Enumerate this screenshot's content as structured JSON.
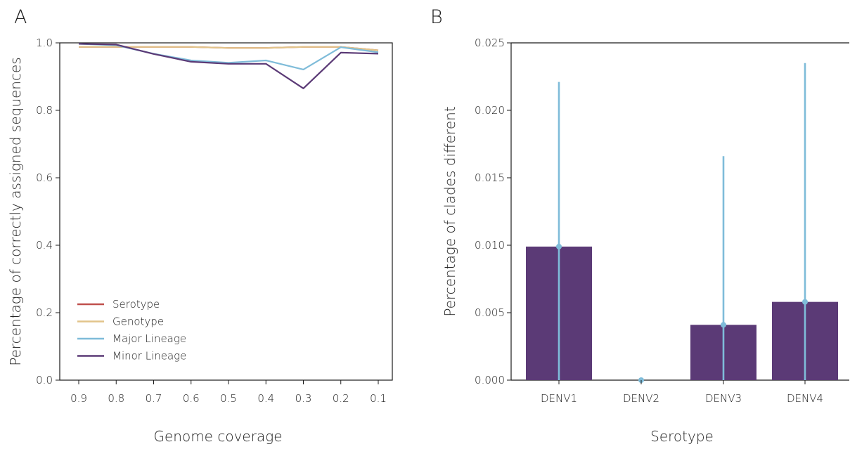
{
  "chart_data": [
    {
      "panel_label": "A",
      "type": "line",
      "xlabel": "Genome coverage",
      "ylabel": "Percentage of correctly assigned sequences",
      "x": [
        0.9,
        0.8,
        0.7,
        0.6,
        0.5,
        0.4,
        0.3,
        0.2,
        0.1
      ],
      "x_tick_labels": [
        "0.9",
        "0.8",
        "0.7",
        "0.6",
        "0.5",
        "0.4",
        "0.3",
        "0.2",
        "0.1"
      ],
      "x_reversed": true,
      "ylim": [
        0.0,
        1.0
      ],
      "y_ticks": [
        0.0,
        0.2,
        0.4,
        0.6,
        0.8,
        1.0
      ],
      "y_tick_labels": [
        "0.0",
        "0.2",
        "0.4",
        "0.6",
        "0.8",
        "1.0"
      ],
      "grid": false,
      "legend_position": "bottom-left",
      "series": [
        {
          "name": "Serotype",
          "color": "#c0504d",
          "values": [
            0.988,
            0.988,
            0.988,
            0.988,
            0.985,
            0.985,
            0.988,
            0.988,
            0.978
          ]
        },
        {
          "name": "Genotype",
          "color": "#e2c48a",
          "values": [
            0.988,
            0.988,
            0.988,
            0.988,
            0.985,
            0.985,
            0.988,
            0.988,
            0.978
          ]
        },
        {
          "name": "Major Lineage",
          "color": "#7fbcd9",
          "values": [
            0.997,
            0.993,
            0.968,
            0.948,
            0.941,
            0.948,
            0.921,
            0.987,
            0.972
          ]
        },
        {
          "name": "Minor Lineage",
          "color": "#5b3a76",
          "values": [
            0.997,
            0.995,
            0.967,
            0.944,
            0.938,
            0.938,
            0.865,
            0.971,
            0.968
          ]
        }
      ]
    },
    {
      "panel_label": "B",
      "type": "bar",
      "xlabel": "Serotype",
      "ylabel": "Percentage of clades different",
      "categories": [
        "DENV1",
        "DENV2",
        "DENV3",
        "DENV4"
      ],
      "values": [
        0.0099,
        0.0,
        0.0041,
        0.0058
      ],
      "error_upper": [
        0.0221,
        0.0,
        0.0166,
        0.0235
      ],
      "error_lower": [
        0.0,
        0.0,
        0.0,
        0.0
      ],
      "ylim": [
        0.0,
        0.025
      ],
      "y_ticks": [
        0.0,
        0.005,
        0.01,
        0.015,
        0.02,
        0.025
      ],
      "y_tick_labels": [
        "0.000",
        "0.005",
        "0.010",
        "0.015",
        "0.020",
        "0.025"
      ],
      "bar_color": "#5b3a76",
      "error_color": "#7fbcd9",
      "grid": false
    }
  ]
}
